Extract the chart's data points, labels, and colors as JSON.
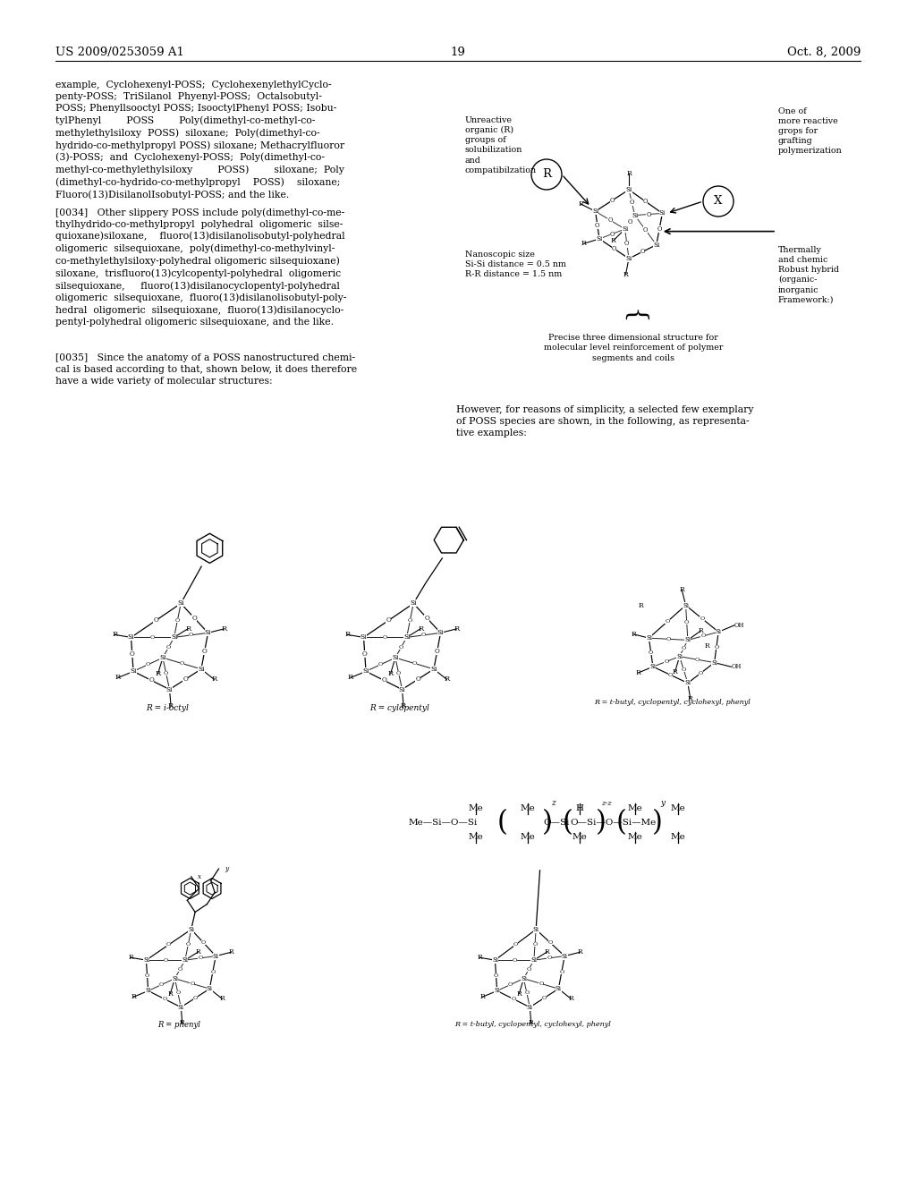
{
  "page_number": "19",
  "patent_number": "US 2009/0253059 A1",
  "patent_date": "Oct. 8, 2009",
  "bg_color": "#ffffff",
  "text_color": "#000000",
  "left_col_text_1": "example,  Cyclohexenyl-POSS;  CyclohexenylethylCyclo-\npenty-POSS;  TriSilanol  Phyenyl-POSS;  Octalsobutyl-\nPOSS; Phenyllsooctyl POSS; IsooctylPhenyl POSS; Isobu-\ntylPhenyl        POSS        Poly(dimethyl-co-methyl-co-\nmethylethylsiloxy  POSS)  siloxane;  Poly(dimethyl-co-\nhydrido-co-methylpropyl POSS) siloxane; Methacrylfluoror\n(3)-POSS;  and  Cyclohexenyl-POSS;  Poly(dimethyl-co-\nmethyl-co-methylethylsiloxy        POSS)        siloxane;  Poly\n(dimethyl-co-hydrido-co-methylpropyl    POSS)    siloxane;\nFluoro(13)DisilanolIsobutyl-POSS; and the like.",
  "left_col_text_2": "[0034]   Other slippery POSS include poly(dimethyl-co-me-\nthylhydrido-co-methylpropyl  polyhedral  oligomeric  silse-\nquioxane)siloxane,    fluoro(13)disilanolisobutyl-polyhedral\noligomeric  silsequioxane,  poly(dimethyl-co-methylvinyl-\nco-methylethylsiloxy-polyhedral oligomeric silsequioxane)\nsiloxane,  trisfluoro(13)cylcopentyl-polyhedral  oligomeric\nsilsequioxane,     fluoro(13)disilanocyclopentyl-polyhedral\noligomeric  silsequioxane,  fluoro(13)disilanolisobutyl-poly-\nhedral  oligomeric  silsequioxane,  fluoro(13)disilanocyclo-\npentyl-polyhedral oligomeric silsequioxane, and the like.",
  "left_col_text_3": "[0035]   Since the anatomy of a POSS nanostructured chemi-\ncal is based according to that, shown below, it does therefore\nhave a wide variety of molecular structures:",
  "right_top_text": "However, for reasons of simplicity, a selected few exemplary\nof POSS species are shown, in the following, as representa-\ntive examples:",
  "ann_unreactive": "Unreactive\norganic (R)\ngroups of\nsolubilization\nand\ncompatibilzation",
  "ann_reactive": "One of\nmore reactive\ngrops for\ngrafting\npolymerization",
  "ann_nanoscopic": "Nanoscopic size\nSi-Si distance = 0.5 nm\nR-R distance = 1.5 nm",
  "ann_thermally": "Thermally\nand chemic\nRobust hybrid\n(organic-\ninorganic\nFramework:)",
  "ann_precise": "Precise three dimensional structure for\nmolecular level reinforcement of polymer\nsegments and coils",
  "label_ioctyl": "R = i-octyl",
  "label_cylopentyl": "R = cylopentyl",
  "label_tbutyl1": "R = t-butyl, cyclopentyl, cyclohexyl, phenyl",
  "label_phenyl": "R = phenyl",
  "label_tbutyl2": "R = t-butyl, cyclopentyl, cyclohexyl, phenyl"
}
